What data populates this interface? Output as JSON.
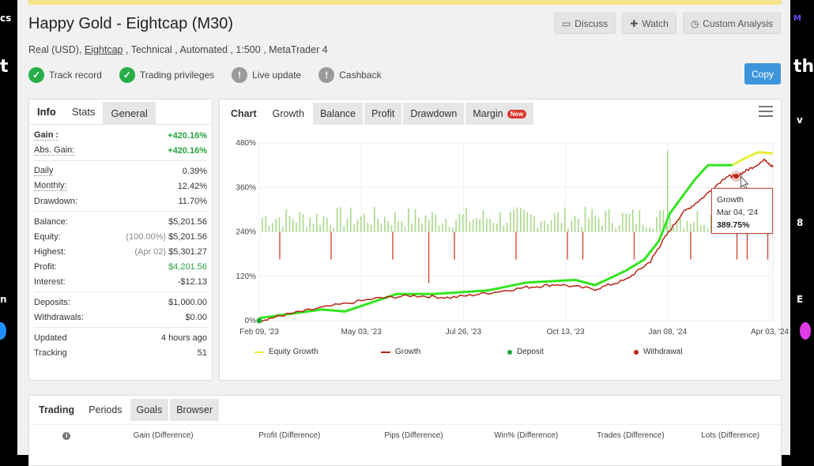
{
  "edges": {
    "left_texts": [
      "cs",
      "t",
      "n"
    ],
    "right_texts": [
      "th",
      "v",
      "8",
      "E"
    ]
  },
  "header": {
    "title": "Happy Gold - Eightcap (M30)",
    "subtitle_prefix": "Real (USD), ",
    "broker": "Eightcap",
    "subtitle_suffix": " , Technical , Automated , 1:500 , MetaTrader 4",
    "buttons": {
      "discuss": "Discuss",
      "watch": "Watch",
      "custom": "Custom Analysis"
    },
    "copy": "Copy"
  },
  "badges": [
    {
      "label": "Track record",
      "status": "ok"
    },
    {
      "label": "Trading privileges",
      "status": "ok"
    },
    {
      "label": "Live update",
      "status": "na"
    },
    {
      "label": "Cashback",
      "status": "na"
    }
  ],
  "info": {
    "tabs": [
      "Info",
      "Stats",
      "General"
    ],
    "gain_label": "Gain :",
    "gain": "+420.16%",
    "abs_gain_label": "Abs. Gain:",
    "abs_gain": "+420.16%",
    "daily_label": "Daily",
    "daily": "0.39%",
    "monthly_label": "Monthly:",
    "monthly": "12.42%",
    "drawdown_label": "Drawdown:",
    "drawdown": "11.70%",
    "balance_label": "Balance:",
    "balance": "$5,201.56",
    "equity_label": "Equity:",
    "equity_pct": "(100.00%)",
    "equity": "$5,201.56",
    "highest_label": "Highest:",
    "highest_date": "(Apr 02)",
    "highest": "$5,301.27",
    "profit_label": "Profit:",
    "profit": "$4,201.56",
    "interest_label": "Interest:",
    "interest": "-$12.13",
    "deposits_label": "Deposits:",
    "deposits": "$1,000.00",
    "withdrawals_label": "Withdrawals:",
    "withdrawals": "$0.00",
    "updated_label": "Updated",
    "updated": "4 hours ago",
    "tracking_label": "Tracking",
    "tracking": "51"
  },
  "chart_tabs": {
    "label": "Chart",
    "tabs": [
      "Growth",
      "Balance",
      "Profit",
      "Drawdown",
      "Margin"
    ],
    "new_badge": "New"
  },
  "tooltip": {
    "title": "Growth",
    "date": "Mar 04, '24",
    "value": "389.75%"
  },
  "legend": [
    "Equity Growth",
    "Growth",
    "Deposit",
    "Withdrawal"
  ],
  "colors": {
    "equity": "#33e51f",
    "equity_recent": "#e8ee3a",
    "growth": "#b92418",
    "daily_bar": "#a8d98a",
    "withdrawal": "#d24a3c",
    "deposit": "#22a83a"
  },
  "chart_data": {
    "type": "line",
    "title": "",
    "yticks": [
      "480%",
      "360%",
      "240%",
      "120%",
      "0%"
    ],
    "ylim": [
      0,
      480
    ],
    "xticks": [
      "Feb 09, '23",
      "May 03, '23",
      "Jul 26, '23",
      "Oct 13, '23",
      "Jan 08, '24",
      "Apr 03, '24"
    ],
    "x_range": [
      "2023-02-09",
      "2024-04-03"
    ],
    "series": [
      {
        "name": "Equity Growth",
        "points": [
          [
            "2023-02-09",
            7
          ],
          [
            "2023-04-01",
            30
          ],
          [
            "2023-04-20",
            25
          ],
          [
            "2023-06-01",
            72
          ],
          [
            "2023-07-01",
            72
          ],
          [
            "2023-08-15",
            82
          ],
          [
            "2023-09-15",
            103
          ],
          [
            "2023-10-25",
            110
          ],
          [
            "2023-11-10",
            96
          ],
          [
            "2023-12-05",
            135
          ],
          [
            "2023-12-20",
            165
          ],
          [
            "2024-01-01",
            215
          ],
          [
            "2024-01-10",
            290
          ],
          [
            "2024-01-30",
            380
          ],
          [
            "2024-02-10",
            420
          ],
          [
            "2024-03-01",
            420
          ],
          [
            "2024-03-12",
            440
          ],
          [
            "2024-03-22",
            455
          ],
          [
            "2024-04-03",
            452
          ]
        ]
      },
      {
        "name": "Growth",
        "points": [
          [
            "2023-02-09",
            0
          ],
          [
            "2023-03-01",
            15
          ],
          [
            "2023-04-01",
            35
          ],
          [
            "2023-05-15",
            60
          ],
          [
            "2023-06-15",
            68
          ],
          [
            "2023-07-15",
            62
          ],
          [
            "2023-08-15",
            75
          ],
          [
            "2023-09-15",
            90
          ],
          [
            "2023-10-10",
            98
          ],
          [
            "2023-11-10",
            85
          ],
          [
            "2023-12-05",
            110
          ],
          [
            "2023-12-25",
            160
          ],
          [
            "2024-01-05",
            220
          ],
          [
            "2024-01-20",
            290
          ],
          [
            "2024-02-05",
            330
          ],
          [
            "2024-02-25",
            390
          ],
          [
            "2024-03-04",
            390
          ],
          [
            "2024-03-15",
            410
          ],
          [
            "2024-03-28",
            435
          ],
          [
            "2024-04-03",
            415
          ]
        ]
      }
    ]
  }
}
